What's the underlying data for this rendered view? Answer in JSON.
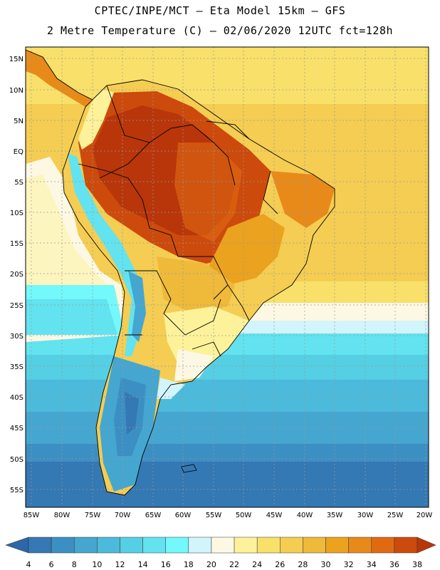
{
  "header": {
    "title_line1": "CPTEC/INPE/MCT –  Eta Model 15km – GFS",
    "title_line2": "2 Metre Temperature (C) – 02/06/2020 12UTC fct=128h"
  },
  "map": {
    "lat_labels": [
      "15N",
      "10N",
      "5N",
      "EQ",
      "5S",
      "10S",
      "15S",
      "20S",
      "25S",
      "30S",
      "35S",
      "40S",
      "45S",
      "50S",
      "55S"
    ],
    "lon_labels": [
      "85W",
      "80W",
      "75W",
      "70W",
      "65W",
      "60W",
      "55W",
      "50W",
      "45W",
      "40W",
      "35W",
      "30W",
      "25W",
      "20W"
    ]
  },
  "colorbar": {
    "labels": [
      "4",
      "6",
      "8",
      "10",
      "12",
      "14",
      "16",
      "18",
      "20",
      "22",
      "24",
      "26",
      "28",
      "30",
      "32",
      "34",
      "36",
      "38"
    ],
    "colors": [
      "#2e66a8",
      "#3478b4",
      "#3c8fc3",
      "#45a6d0",
      "#4cbadb",
      "#55cfe4",
      "#62e3ef",
      "#73f8fb",
      "#d2f4fb",
      "#fdf8e4",
      "#fdf29a",
      "#f9e06a",
      "#f4cd52",
      "#efb93a",
      "#eba21e",
      "#e88a1a",
      "#e06a12",
      "#cc4a0c",
      "#b8360a"
    ]
  }
}
